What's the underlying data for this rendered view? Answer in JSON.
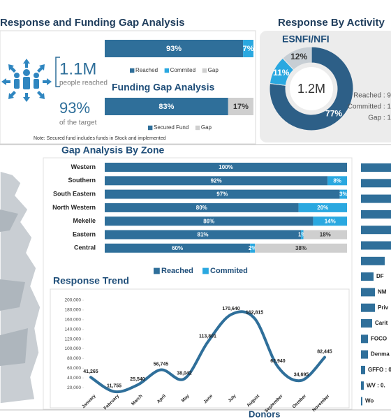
{
  "header": {
    "left_title": "Response and Funding Gap Analysis",
    "right_title": "Response By Activity"
  },
  "summary": {
    "reached": "1.1M",
    "reached_label": "people reached",
    "percent": "93%",
    "percent_label": "of the target"
  },
  "note": "Note: Secured fund includes funds in Stock and implemented",
  "chart_data": [
    {
      "type": "bar",
      "orientation": "horizontal",
      "stacked": true,
      "categories": [
        null
      ],
      "xlim": [
        0,
        100
      ],
      "series": [
        {
          "name": "Reached",
          "color": "#2f6f9a",
          "values": [
            93
          ],
          "value_labels": [
            "93%"
          ]
        },
        {
          "name": "Commited",
          "color": "#2aa8e0",
          "values": [
            7
          ],
          "value_labels": [
            "7%"
          ]
        },
        {
          "name": "Gap",
          "color": "#cfcfcf",
          "values": [
            0
          ],
          "value_labels": [
            null
          ]
        }
      ]
    },
    {
      "type": "bar",
      "orientation": "horizontal",
      "stacked": true,
      "title": "Funding Gap Analysis",
      "categories": [
        null
      ],
      "xlim": [
        0,
        100
      ],
      "series": [
        {
          "name": "Secured Fund",
          "color": "#2f6f9a",
          "values": [
            83
          ],
          "value_labels": [
            "83%"
          ]
        },
        {
          "name": "Gap",
          "color": "#cfcfcf",
          "values": [
            17
          ],
          "value_labels": [
            "17%"
          ]
        }
      ]
    },
    {
      "type": "pie",
      "title": "ESNFI/NFI",
      "center_label": "1.2M",
      "categories": [
        "Reached : 9",
        "Committed : 1",
        "Gap : 1"
      ],
      "values": [
        77,
        11,
        12
      ],
      "value_labels": [
        "77%",
        "11%",
        "12%"
      ],
      "colors": [
        "#2d5f87",
        "#2aa8e0",
        "#c7ced4"
      ]
    },
    {
      "type": "bar",
      "orientation": "horizontal",
      "stacked": true,
      "title": "Gap Analysis By Zone",
      "categories": [
        "Western",
        "Southern",
        "South Eastern",
        "North Western",
        "Mekelle",
        "Eastern",
        "Central"
      ],
      "xlim": [
        0,
        100
      ],
      "series": [
        {
          "name": "Reached",
          "color": "#2f6f9a",
          "values": [
            100,
            92,
            97,
            80,
            86,
            81,
            60
          ],
          "value_labels": [
            "100%",
            "92%",
            "97%",
            "80%",
            "86%",
            "81%",
            "60%"
          ]
        },
        {
          "name": "Commited",
          "color": "#2aa8e0",
          "values": [
            0,
            8,
            3,
            20,
            14,
            1,
            2
          ],
          "value_labels": [
            null,
            "8%",
            "3%",
            "20%",
            "14%",
            "1%",
            "2%"
          ]
        },
        {
          "color": "#cfcfcf",
          "values": [
            0,
            0,
            0,
            0,
            0,
            18,
            38
          ],
          "value_labels": [
            null,
            null,
            null,
            null,
            null,
            "18%",
            "38%"
          ]
        }
      ]
    },
    {
      "type": "line",
      "title": "Response Trend",
      "categories": [
        "January",
        "February",
        "March",
        "April",
        "May",
        "June",
        "July",
        "August",
        "September",
        "October",
        "November"
      ],
      "values": [
        41265,
        11755,
        25540,
        56745,
        38042,
        113801,
        170640,
        162815,
        62940,
        34695,
        82445
      ],
      "value_labels": [
        "41,265",
        "11,755",
        "25,540",
        "56,745",
        "38,042",
        "113,801",
        "170,640",
        "162,815",
        "62,940",
        "34,695",
        "82,445"
      ],
      "color": "#2f6f9a",
      "ylim": [
        10000,
        200000
      ],
      "yticks": [
        {
          "value": 20000,
          "label": "20,000"
        },
        {
          "value": 40000,
          "label": "40,000"
        },
        {
          "value": 60000,
          "label": "60,000"
        },
        {
          "value": 80000,
          "label": "80,000"
        },
        {
          "value": 100000,
          "label": "100,000"
        },
        {
          "value": 120000,
          "label": "120,000"
        },
        {
          "value": 140000,
          "label": "140,000"
        },
        {
          "value": 160000,
          "label": "160,000"
        },
        {
          "value": 180000,
          "label": "180,000"
        },
        {
          "value": 200000,
          "label": "200,000"
        }
      ]
    },
    {
      "type": "bar",
      "orientation": "horizontal",
      "title": "Donors",
      "xlim": [
        0,
        100
      ],
      "color": "#2f6f9a",
      "categories": [
        null,
        null,
        null,
        null,
        null,
        null,
        null,
        "DF",
        "NM",
        "Priv",
        "Carit",
        "FOCO",
        "Denma",
        "GFFO : 0.",
        "WV : 0.",
        "Wo"
      ],
      "values": [
        95,
        85,
        75,
        65,
        55,
        45,
        17,
        9,
        10,
        10,
        8,
        5,
        5,
        3,
        2,
        1
      ]
    }
  ]
}
